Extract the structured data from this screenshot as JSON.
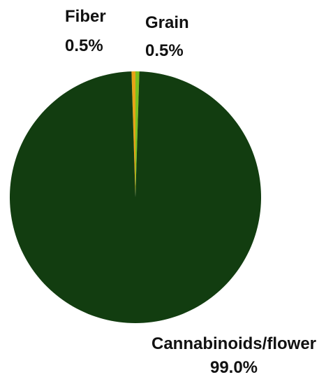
{
  "chart_data": {
    "type": "pie",
    "slices": [
      {
        "label": "Fiber",
        "value": 0.5,
        "display": "0.5%",
        "color": "#e8a317"
      },
      {
        "label": "Grain",
        "value": 0.5,
        "display": "0.5%",
        "color": "#7cbf1e"
      },
      {
        "label": "Cannabinoids/flower",
        "value": 99.0,
        "display": "99.0%",
        "color": "#123d10"
      }
    ]
  }
}
